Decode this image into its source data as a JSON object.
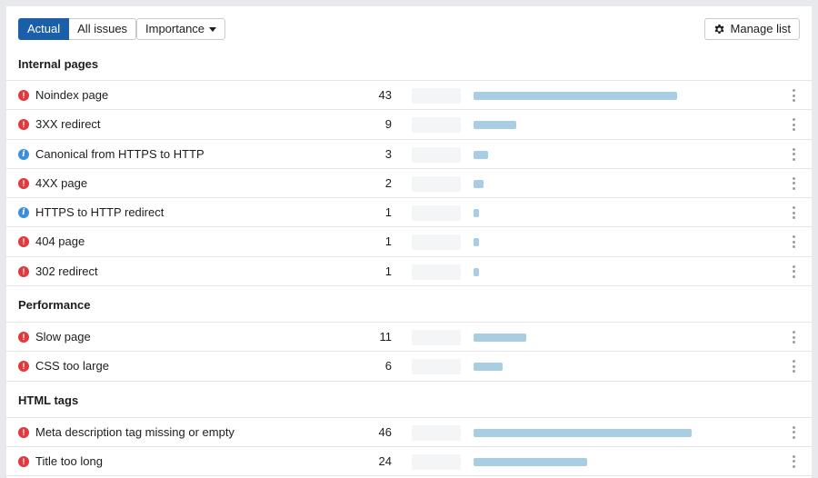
{
  "toolbar": {
    "tab_actual": "Actual",
    "tab_all_issues": "All issues",
    "importance_label": "Importance",
    "manage_label": "Manage list"
  },
  "sections": [
    {
      "title": "Internal pages",
      "rows": [
        {
          "type": "error",
          "label": "Noindex page",
          "count": "43",
          "bar": 224
        },
        {
          "type": "error",
          "label": "3XX redirect",
          "count": "9",
          "bar": 47
        },
        {
          "type": "info",
          "label": "Canonical from HTTPS to HTTP",
          "count": "3",
          "bar": 16
        },
        {
          "type": "error",
          "label": "4XX page",
          "count": "2",
          "bar": 11
        },
        {
          "type": "info",
          "label": "HTTPS to HTTP redirect",
          "count": "1",
          "bar": 6
        },
        {
          "type": "error",
          "label": "404 page",
          "count": "1",
          "bar": 6
        },
        {
          "type": "error",
          "label": "302 redirect",
          "count": "1",
          "bar": 6
        }
      ]
    },
    {
      "title": "Performance",
      "rows": [
        {
          "type": "error",
          "label": "Slow page",
          "count": "11",
          "bar": 58
        },
        {
          "type": "error",
          "label": "CSS too large",
          "count": "6",
          "bar": 32
        }
      ]
    },
    {
      "title": "HTML tags",
      "rows": [
        {
          "type": "error",
          "label": "Meta description tag missing or empty",
          "count": "46",
          "bar": 240
        },
        {
          "type": "error",
          "label": "Title too long",
          "count": "24",
          "bar": 125
        }
      ]
    }
  ],
  "colors": {
    "accent": "#1b5fa8",
    "error": "#e0393e",
    "info": "#3b8fd6",
    "bar": "#a9cde3"
  }
}
